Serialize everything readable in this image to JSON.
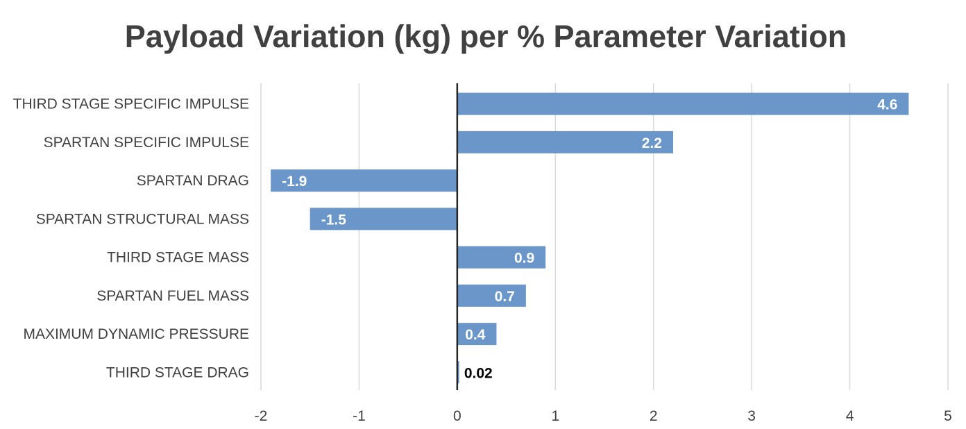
{
  "colors": {
    "bar": "#6a96c9",
    "grid": "#d9d9d9",
    "axis": "#262626",
    "text": "#404040",
    "label_inside": "#ffffff",
    "label_outside": "#000000"
  },
  "chart_data": {
    "type": "bar",
    "orientation": "horizontal",
    "title": "Payload Variation (kg) per % Parameter Variation",
    "xlabel": "",
    "ylabel": "",
    "xlim": [
      -2,
      5
    ],
    "xticks": [
      "-2",
      "-1",
      "0",
      "1",
      "2",
      "3",
      "4",
      "5"
    ],
    "grid": true,
    "legend": "none",
    "categories": [
      "THIRD STAGE SPECIFIC IMPULSE",
      "SPARTAN SPECIFIC IMPULSE",
      "SPARTAN DRAG",
      "SPARTAN STRUCTURAL MASS",
      "THIRD STAGE MASS",
      "SPARTAN FUEL MASS",
      "MAXIMUM DYNAMIC PRESSURE",
      "THIRD STAGE DRAG"
    ],
    "values": [
      4.6,
      2.2,
      -1.9,
      -1.5,
      0.9,
      0.7,
      0.4,
      0.02
    ],
    "data_labels": [
      "4.6",
      "2.2",
      "-1.9",
      "-1.5",
      "0.9",
      "0.7",
      "0.4",
      "0.02"
    ]
  }
}
